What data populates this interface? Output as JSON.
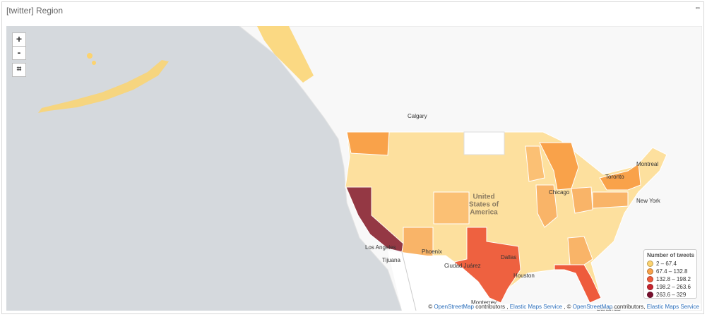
{
  "header": {
    "title": "[twitter] Region",
    "menu": "▫▫▫"
  },
  "map": {
    "zoom_controls": [
      "+",
      "-"
    ],
    "crop_icon": "⌗",
    "places": [
      "Calgary",
      "Toronto",
      "Montreal",
      "Chicago",
      "New York",
      "Los Angeles",
      "Phoenix",
      "Tijuana",
      "Ciudad Juárez",
      "Dallas",
      "Houston",
      "Monterrey",
      "Bahamas"
    ],
    "country_label": [
      "United",
      "States of",
      "America"
    ]
  },
  "legend": {
    "title": "Number of tweets",
    "items": [
      {
        "label": "2 – 67.4",
        "color": "#fcd36f"
      },
      {
        "label": "67.4 – 132.8",
        "color": "#f9a24a"
      },
      {
        "label": "132.8 – 198.2",
        "color": "#ee5b3c"
      },
      {
        "label": "198.2 – 263.6",
        "color": "#c7242e"
      },
      {
        "label": "263.6 – 329",
        "color": "#7a0f2e"
      }
    ]
  },
  "attribution": [
    "©",
    "OpenStreetMap",
    "contributors ,",
    "Elastic Maps Service",
    ", ©",
    "OpenStreetMap",
    "contributors,",
    "Elastic Maps Service"
  ]
}
